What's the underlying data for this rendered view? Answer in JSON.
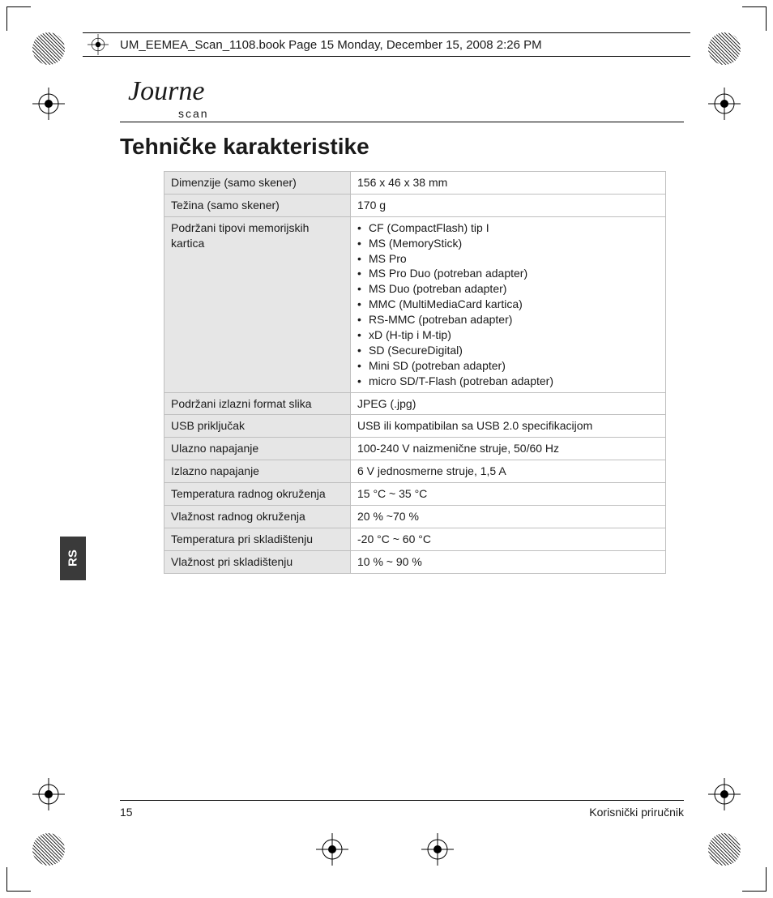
{
  "header": {
    "text": "UM_EEMEA_Scan_1108.book  Page 15  Monday, December 15, 2008  2:26 PM"
  },
  "logo": {
    "main": "Journe",
    "sub": "scan"
  },
  "title": "Tehničke karakteristike",
  "sideTab": "RS",
  "spec": {
    "rows": [
      {
        "label": "Dimenzije (samo skener)",
        "value": "156 x 46 x 38 mm"
      },
      {
        "label": "Težina (samo skener)",
        "value": "170 g"
      },
      {
        "label": "Podržani tipovi memorijskih kartica",
        "list": [
          "CF (CompactFlash) tip I",
          "MS (MemoryStick)",
          "MS Pro",
          "MS Pro Duo (potreban adapter)",
          "MS Duo (potreban adapter)",
          "MMC (MultiMediaCard kartica)",
          "RS-MMC (potreban adapter)",
          "xD (H-tip i M-tip)",
          "SD (SecureDigital)",
          "Mini SD (potreban adapter)",
          "micro SD/T-Flash (potreban adapter)"
        ]
      },
      {
        "label": "Podržani izlazni format slika",
        "value": "JPEG (.jpg)"
      },
      {
        "label": "USB priključak",
        "value": "USB ili kompatibilan sa USB 2.0 specifikacijom"
      },
      {
        "label": "Ulazno napajanje",
        "value": "100-240 V naizmenične struje, 50/60 Hz"
      },
      {
        "label": "Izlazno napajanje",
        "value": "6 V jednosmerne struje, 1,5 A"
      },
      {
        "label": "Temperatura radnog okruženja",
        "value": "15 °C ~ 35 °C"
      },
      {
        "label": "Vlažnost radnog okruženja",
        "value": "20 % ~70 %"
      },
      {
        "label": "Temperatura pri skladištenju",
        "value": "-20 °C ~ 60 °C"
      },
      {
        "label": "Vlažnost pri skladištenju",
        "value": "10 % ~ 90 %"
      }
    ]
  },
  "footer": {
    "pageNumber": "15",
    "bookTitle": "Korisnički priručnik"
  },
  "colors": {
    "labelBg": "#e6e6e6",
    "border": "#bfbfbf",
    "tabBg": "#3a3a3a",
    "tabText": "#ffffff",
    "text": "#1a1a1a"
  }
}
